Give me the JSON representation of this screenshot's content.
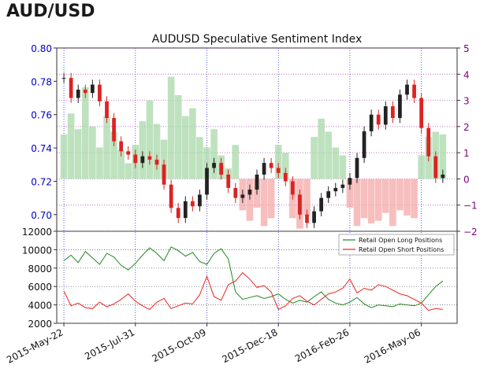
{
  "header": {
    "title": "AUD/USD"
  },
  "chart_data": [
    {
      "type": "candlestick+bar",
      "title": "AUDUSD Speculative Sentiment Index",
      "colors": {
        "candle_up": "#222222",
        "candle_down": "#dd2222",
        "ssi_positive": "#a8d8a8",
        "ssi_negative": "#f4a8a8",
        "left_axis": "#0000cc",
        "right_axis": "#800080",
        "grid": "#3333cc"
      },
      "left_axis": {
        "ticks": [
          0.7,
          0.72,
          0.74,
          0.76,
          0.78,
          0.8
        ],
        "tick_labels": [
          "0.70",
          "0.72",
          "0.74",
          "0.76",
          "0.78",
          "0.80"
        ],
        "ylim": [
          0.69,
          0.8
        ]
      },
      "right_axis": {
        "ticks": [
          -2,
          -1,
          0,
          1,
          2,
          3,
          4,
          5
        ],
        "tick_labels": [
          "−2",
          "−1",
          "0",
          "1",
          "2",
          "3",
          "4",
          "5"
        ],
        "ylim": [
          -2,
          5
        ]
      },
      "price_series": {
        "x": [
          "2015-05-22",
          "2015-05-29",
          "2015-06-05",
          "2015-06-12",
          "2015-06-19",
          "2015-06-26",
          "2015-07-03",
          "2015-07-10",
          "2015-07-17",
          "2015-07-24",
          "2015-07-31",
          "2015-08-07",
          "2015-08-14",
          "2015-08-21",
          "2015-08-28",
          "2015-09-04",
          "2015-09-11",
          "2015-09-18",
          "2015-09-25",
          "2015-10-02",
          "2015-10-09",
          "2015-10-16",
          "2015-10-23",
          "2015-10-30",
          "2015-11-06",
          "2015-11-13",
          "2015-11-20",
          "2015-11-27",
          "2015-12-04",
          "2015-12-11",
          "2015-12-18",
          "2015-12-25",
          "2016-01-01",
          "2016-01-08",
          "2016-01-15",
          "2016-01-22",
          "2016-01-29",
          "2016-02-05",
          "2016-02-12",
          "2016-02-19",
          "2016-02-26",
          "2016-03-04",
          "2016-03-11",
          "2016-03-18",
          "2016-03-25",
          "2016-04-01",
          "2016-04-08",
          "2016-04-15",
          "2016-04-22",
          "2016-04-29",
          "2016-05-06",
          "2016-05-13",
          "2016-05-20",
          "2016-05-27"
        ],
        "close": [
          0.782,
          0.77,
          0.775,
          0.773,
          0.778,
          0.768,
          0.758,
          0.744,
          0.738,
          0.736,
          0.731,
          0.735,
          0.733,
          0.73,
          0.718,
          0.704,
          0.698,
          0.708,
          0.705,
          0.712,
          0.728,
          0.731,
          0.724,
          0.716,
          0.71,
          0.712,
          0.715,
          0.724,
          0.731,
          0.728,
          0.725,
          0.72,
          0.712,
          0.7,
          0.695,
          0.702,
          0.71,
          0.714,
          0.716,
          0.718,
          0.722,
          0.734,
          0.75,
          0.76,
          0.754,
          0.765,
          0.758,
          0.772,
          0.778,
          0.77,
          0.752,
          0.735,
          0.722,
          0.724
        ]
      },
      "ssi": {
        "x": [
          "2015-05-22",
          "2015-05-29",
          "2015-06-05",
          "2015-06-12",
          "2015-06-19",
          "2015-06-26",
          "2015-07-03",
          "2015-07-10",
          "2015-07-17",
          "2015-07-24",
          "2015-07-31",
          "2015-08-07",
          "2015-08-14",
          "2015-08-21",
          "2015-08-28",
          "2015-09-04",
          "2015-09-11",
          "2015-09-18",
          "2015-09-25",
          "2015-10-02",
          "2015-10-09",
          "2015-10-16",
          "2015-10-23",
          "2015-10-30",
          "2015-11-06",
          "2015-11-13",
          "2015-11-20",
          "2015-11-27",
          "2015-12-04",
          "2015-12-11",
          "2015-12-18",
          "2015-12-25",
          "2016-01-01",
          "2016-01-08",
          "2016-01-15",
          "2016-01-22",
          "2016-01-29",
          "2016-02-05",
          "2016-02-12",
          "2016-02-19",
          "2016-02-26",
          "2016-03-04",
          "2016-03-11",
          "2016-03-18",
          "2016-03-25",
          "2016-04-01",
          "2016-04-08",
          "2016-04-15",
          "2016-04-22",
          "2016-04-29",
          "2016-05-06",
          "2016-05-13",
          "2016-05-20",
          "2016-05-27"
        ],
        "values": [
          1.7,
          2.5,
          1.9,
          3.5,
          2.0,
          1.2,
          2.4,
          1.8,
          1.1,
          0.6,
          1.3,
          2.2,
          3.0,
          2.1,
          1.5,
          3.9,
          3.2,
          2.4,
          2.7,
          1.6,
          1.2,
          1.9,
          0.9,
          0.4,
          1.3,
          -1.2,
          -1.6,
          -1.1,
          -1.8,
          -1.5,
          1.3,
          1.0,
          -1.5,
          -1.9,
          -1.4,
          1.6,
          2.3,
          1.8,
          1.2,
          0.9,
          -1.1,
          -1.8,
          -1.5,
          -1.7,
          -1.6,
          -1.3,
          -1.8,
          -1.2,
          -1.4,
          -1.5,
          0.9,
          1.6,
          1.8,
          1.7
        ]
      }
    },
    {
      "type": "line",
      "ylim": [
        2000,
        12000
      ],
      "yticks": [
        2000,
        4000,
        6000,
        8000,
        10000,
        12000
      ],
      "ytick_labels": [
        "2000",
        "4000",
        "6000",
        "8000",
        "10000",
        "12000"
      ],
      "legend_position": "top-right",
      "x": [
        "2015-05-22",
        "2015-05-29",
        "2015-06-05",
        "2015-06-12",
        "2015-06-19",
        "2015-06-26",
        "2015-07-03",
        "2015-07-10",
        "2015-07-17",
        "2015-07-24",
        "2015-07-31",
        "2015-08-07",
        "2015-08-14",
        "2015-08-21",
        "2015-08-28",
        "2015-09-04",
        "2015-09-11",
        "2015-09-18",
        "2015-09-25",
        "2015-10-02",
        "2015-10-09",
        "2015-10-16",
        "2015-10-23",
        "2015-10-30",
        "2015-11-06",
        "2015-11-13",
        "2015-11-20",
        "2015-11-27",
        "2015-12-04",
        "2015-12-11",
        "2015-12-18",
        "2015-12-25",
        "2016-01-01",
        "2016-01-08",
        "2016-01-15",
        "2016-01-22",
        "2016-01-29",
        "2016-02-05",
        "2016-02-12",
        "2016-02-19",
        "2016-02-26",
        "2016-03-04",
        "2016-03-11",
        "2016-03-18",
        "2016-03-25",
        "2016-04-01",
        "2016-04-08",
        "2016-04-15",
        "2016-04-22",
        "2016-04-29",
        "2016-05-06",
        "2016-05-13",
        "2016-05-20",
        "2016-05-27"
      ],
      "series": [
        {
          "name": "Retail Open Long Positions",
          "color": "#228822",
          "values": [
            8800,
            9400,
            8600,
            9800,
            9100,
            8400,
            9600,
            9200,
            8300,
            7800,
            8500,
            9400,
            10200,
            9600,
            8800,
            10300,
            9900,
            9300,
            9700,
            8700,
            8400,
            9600,
            10100,
            9000,
            5400,
            4600,
            4800,
            5000,
            4700,
            4900,
            5200,
            4600,
            4200,
            4500,
            4300,
            4900,
            5400,
            4600,
            4200,
            4000,
            4300,
            4800,
            4100,
            3700,
            4000,
            3900,
            3800,
            4100,
            4000,
            3900,
            4200,
            5100,
            6000,
            6600
          ]
        },
        {
          "name": "Retail Open Short Positions",
          "color": "#ee2222",
          "values": [
            5500,
            3900,
            4200,
            3700,
            3600,
            4300,
            3800,
            4100,
            4600,
            5200,
            4400,
            3900,
            3500,
            4300,
            4700,
            3600,
            3900,
            4200,
            4100,
            5100,
            7100,
            4900,
            4500,
            6200,
            6600,
            7500,
            6800,
            5900,
            6100,
            5400,
            3500,
            3900,
            4700,
            5000,
            4400,
            4000,
            4600,
            5200,
            5400,
            5800,
            6800,
            5300,
            5800,
            5600,
            6200,
            6000,
            5600,
            5200,
            5000,
            4600,
            4200,
            3400,
            3600,
            3500
          ]
        }
      ]
    }
  ],
  "x_tick_labels": [
    "2015-May-22",
    "2015-Jul-31",
    "2015-Oct-09",
    "2015-Dec-18",
    "2016-Feb-26",
    "2016-May-06"
  ]
}
